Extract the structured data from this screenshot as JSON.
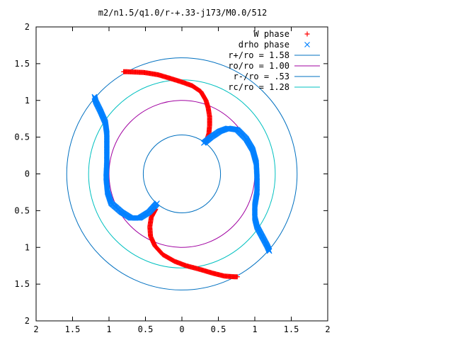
{
  "chart_data": {
    "type": "scatter",
    "title": "m2/n1.5/q1.0/r-+.33-j173/M0.0/512",
    "xlim": [
      -2,
      2
    ],
    "ylim": [
      -2,
      2
    ],
    "x_ticks": [
      -2,
      -1.5,
      -1,
      -0.5,
      0,
      0.5,
      1,
      1.5,
      2
    ],
    "y_ticks": [
      -2,
      -1.5,
      -1,
      -0.5,
      0,
      0.5,
      1,
      1.5,
      2
    ],
    "x_tick_labels": [
      "2",
      "1.5",
      "1",
      "0.5",
      "0",
      "0.5",
      "1",
      "1.5",
      "2"
    ],
    "y_tick_labels": [
      "2",
      "1.5",
      "1",
      "0.5",
      "0",
      "0.5",
      "1",
      "1.5",
      "2"
    ],
    "grid": false,
    "legend_position": "top-right",
    "legend": [
      {
        "label": "W phase",
        "kind": "marker",
        "marker": "plus",
        "color": "#ff0000"
      },
      {
        "label": "drho phase",
        "kind": "marker",
        "marker": "cross",
        "color": "#0080ff"
      },
      {
        "label": "r+/ro = 1.58",
        "kind": "line",
        "color": "#0070c0"
      },
      {
        "label": "ro/ro = 1.00",
        "kind": "line",
        "color": "#a000a0"
      },
      {
        "label": "r-/ro = .53",
        "kind": "line",
        "color": "#0070c0"
      },
      {
        "label": "rc/ro = 1.28",
        "kind": "line",
        "color": "#00c0c0"
      }
    ],
    "circles": [
      {
        "name": "r+/ro = 1.58",
        "radius": 1.58,
        "color": "#0070c0"
      },
      {
        "name": "ro/ro = 1.00",
        "radius": 1.0,
        "color": "#a000a0"
      },
      {
        "name": "r-/ro = .53",
        "radius": 0.53,
        "color": "#0070c0"
      },
      {
        "name": "rc/ro = 1.28",
        "radius": 1.28,
        "color": "#00c0c0"
      }
    ],
    "series": [
      {
        "name": "W phase",
        "marker": "plus",
        "color": "#ff0000",
        "arms": [
          [
            [
              0.33,
              0.43
            ],
            [
              0.37,
              0.55
            ],
            [
              0.38,
              0.66
            ],
            [
              0.38,
              0.78
            ],
            [
              0.36,
              0.9
            ],
            [
              0.33,
              1.0
            ],
            [
              0.26,
              1.12
            ],
            [
              0.14,
              1.2
            ],
            [
              0.0,
              1.25
            ],
            [
              -0.16,
              1.3
            ],
            [
              -0.33,
              1.35
            ],
            [
              -0.52,
              1.38
            ],
            [
              -0.75,
              1.39
            ],
            [
              -0.8,
              1.39
            ]
          ],
          [
            [
              -0.36,
              -0.48
            ],
            [
              -0.42,
              -0.59
            ],
            [
              -0.44,
              -0.72
            ],
            [
              -0.43,
              -0.85
            ],
            [
              -0.37,
              -0.98
            ],
            [
              -0.26,
              -1.1
            ],
            [
              -0.1,
              -1.19
            ],
            [
              0.06,
              -1.25
            ],
            [
              0.25,
              -1.3
            ],
            [
              0.42,
              -1.35
            ],
            [
              0.58,
              -1.39
            ],
            [
              0.72,
              -1.4
            ],
            [
              0.76,
              -1.4
            ]
          ]
        ]
      },
      {
        "name": "drho phase",
        "marker": "cross",
        "color": "#0080ff",
        "arms": [
          [
            [
              0.3,
              0.42
            ],
            [
              0.4,
              0.5
            ],
            [
              0.52,
              0.58
            ],
            [
              0.63,
              0.62
            ],
            [
              0.76,
              0.6
            ],
            [
              0.88,
              0.48
            ],
            [
              0.97,
              0.33
            ],
            [
              1.02,
              0.15
            ],
            [
              1.03,
              -0.05
            ],
            [
              1.03,
              -0.25
            ],
            [
              1.0,
              -0.43
            ],
            [
              1.0,
              -0.6
            ],
            [
              1.03,
              -0.72
            ],
            [
              1.1,
              -0.85
            ],
            [
              1.17,
              -0.98
            ],
            [
              1.2,
              -1.05
            ]
          ],
          [
            [
              -0.34,
              -0.4
            ],
            [
              -0.45,
              -0.52
            ],
            [
              -0.58,
              -0.6
            ],
            [
              -0.7,
              -0.6
            ],
            [
              -0.83,
              -0.52
            ],
            [
              -0.97,
              -0.4
            ],
            [
              -1.02,
              -0.25
            ],
            [
              -1.04,
              -0.05
            ],
            [
              -1.03,
              0.15
            ],
            [
              -1.03,
              0.35
            ],
            [
              -1.03,
              0.55
            ],
            [
              -1.05,
              0.7
            ],
            [
              -1.12,
              0.86
            ],
            [
              -1.18,
              0.98
            ],
            [
              -1.2,
              1.05
            ]
          ]
        ]
      }
    ]
  }
}
